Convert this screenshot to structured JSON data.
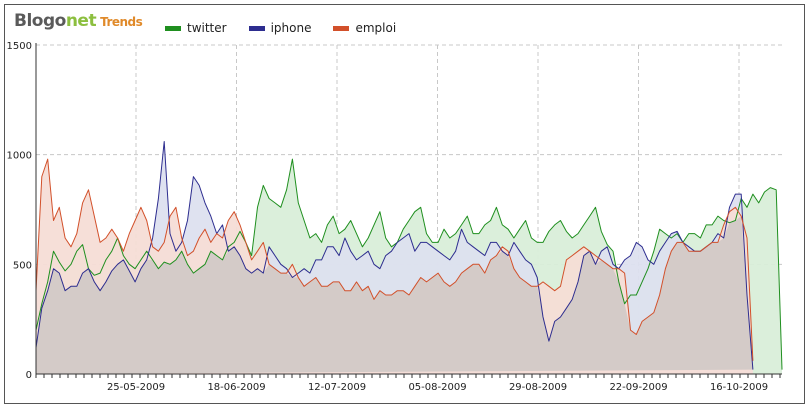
{
  "branding": {
    "part1": "Blogo",
    "part2": "net",
    "part3": "Trends"
  },
  "colors": {
    "twitter": "#1f8f1f",
    "iphone": "#2d2d8f",
    "emploi": "#d2502a"
  },
  "chart_data": {
    "type": "area",
    "title": "",
    "xlabel": "",
    "ylabel": "",
    "ylim": [
      0,
      1500
    ],
    "yticks": [
      "0",
      "500",
      "1000",
      "1500"
    ],
    "xticks": [
      "25-05-2009",
      "18-06-2009",
      "12-07-2009",
      "05-08-2009",
      "29-08-2009",
      "22-09-2009",
      "16-10-2009"
    ],
    "grid": true,
    "legend_position": "top",
    "series": [
      {
        "name": "twitter",
        "color": "#1f8f1f",
        "fill": "#d9eed9",
        "values": [
          200,
          320,
          420,
          560,
          510,
          470,
          500,
          560,
          590,
          480,
          450,
          460,
          520,
          560,
          620,
          540,
          500,
          480,
          520,
          560,
          520,
          480,
          510,
          500,
          520,
          560,
          500,
          460,
          480,
          500,
          560,
          540,
          520,
          580,
          600,
          650,
          600,
          540,
          760,
          860,
          800,
          780,
          760,
          840,
          980,
          780,
          700,
          620,
          640,
          600,
          680,
          720,
          640,
          660,
          700,
          640,
          580,
          620,
          680,
          740,
          620,
          580,
          600,
          660,
          700,
          740,
          760,
          640,
          600,
          600,
          660,
          620,
          640,
          680,
          720,
          640,
          640,
          680,
          700,
          760,
          680,
          660,
          620,
          660,
          700,
          620,
          600,
          600,
          650,
          680,
          700,
          650,
          620,
          640,
          680,
          720,
          760,
          650,
          590,
          560,
          420,
          320,
          360,
          360,
          420,
          480,
          560,
          660,
          640,
          620,
          640,
          600,
          640,
          640,
          620,
          680,
          680,
          720,
          700,
          690,
          700,
          800,
          760,
          820,
          780,
          830,
          850,
          840,
          20
        ]
      },
      {
        "name": "iphone",
        "color": "#2d2d8f",
        "fill": "#dde0ef",
        "values": [
          120,
          300,
          380,
          480,
          460,
          380,
          400,
          400,
          460,
          480,
          420,
          380,
          420,
          470,
          500,
          520,
          470,
          420,
          480,
          520,
          620,
          800,
          1060,
          640,
          560,
          600,
          700,
          900,
          860,
          780,
          720,
          640,
          680,
          560,
          580,
          540,
          480,
          460,
          480,
          460,
          580,
          540,
          500,
          480,
          440,
          460,
          480,
          460,
          520,
          520,
          580,
          580,
          540,
          620,
          560,
          520,
          540,
          560,
          500,
          480,
          540,
          560,
          600,
          620,
          640,
          560,
          600,
          600,
          580,
          560,
          540,
          520,
          560,
          660,
          600,
          580,
          560,
          540,
          600,
          600,
          560,
          540,
          600,
          560,
          520,
          500,
          440,
          260,
          150,
          240,
          260,
          300,
          340,
          420,
          540,
          560,
          500,
          560,
          580,
          500,
          480,
          520,
          540,
          600,
          580,
          520,
          500,
          560,
          600,
          640,
          650,
          600,
          580,
          560,
          560,
          580,
          600,
          640,
          620,
          760,
          820,
          820,
          360,
          20
        ]
      },
      {
        "name": "emploi",
        "color": "#d2502a",
        "fill": "#f5ddd6",
        "values": [
          380,
          900,
          980,
          700,
          760,
          620,
          580,
          640,
          780,
          840,
          720,
          600,
          620,
          660,
          620,
          560,
          640,
          700,
          760,
          700,
          580,
          560,
          600,
          720,
          760,
          620,
          540,
          560,
          620,
          660,
          600,
          640,
          620,
          700,
          740,
          680,
          600,
          520,
          560,
          600,
          500,
          480,
          460,
          460,
          500,
          440,
          400,
          420,
          440,
          400,
          400,
          420,
          420,
          380,
          380,
          420,
          380,
          400,
          340,
          380,
          360,
          360,
          380,
          380,
          360,
          400,
          440,
          420,
          440,
          460,
          420,
          400,
          420,
          460,
          480,
          500,
          500,
          460,
          520,
          540,
          580,
          560,
          480,
          440,
          420,
          400,
          400,
          420,
          400,
          380,
          400,
          520,
          540,
          560,
          580,
          560,
          540,
          520,
          500,
          480,
          480,
          460,
          200,
          180,
          240,
          260,
          280,
          360,
          480,
          560,
          600,
          600,
          560,
          560,
          560,
          580,
          600,
          600,
          680,
          740,
          760,
          720,
          620,
          60
        ]
      }
    ]
  },
  "overlap_fill": "#d4cbc8"
}
